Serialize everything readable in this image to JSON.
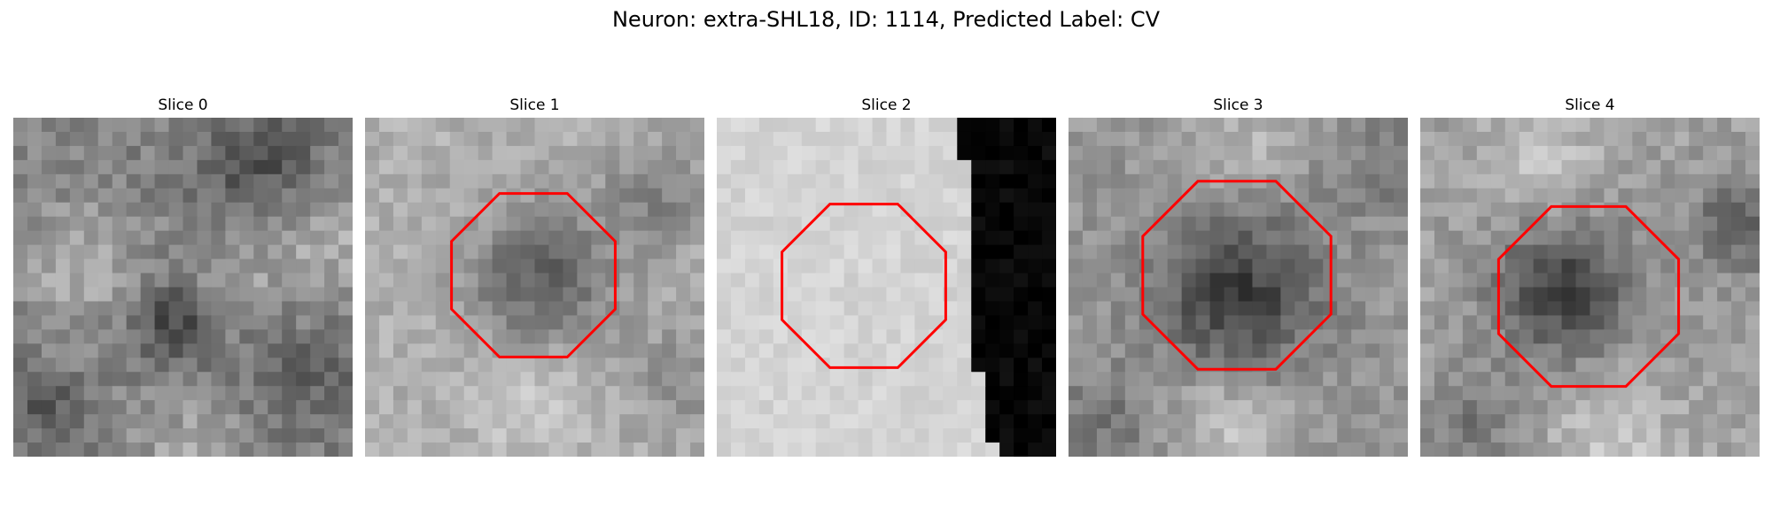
{
  "figure": {
    "title": "Neuron: extra-SHL18, ID: 1114, Predicted Label: CV",
    "outline_color": "#ff0000"
  },
  "panels": [
    {
      "label": "Slice 0",
      "has_outline": false
    },
    {
      "label": "Slice 1",
      "has_outline": true
    },
    {
      "label": "Slice 2",
      "has_outline": true
    },
    {
      "label": "Slice 3",
      "has_outline": true
    },
    {
      "label": "Slice 4",
      "has_outline": true
    }
  ]
}
